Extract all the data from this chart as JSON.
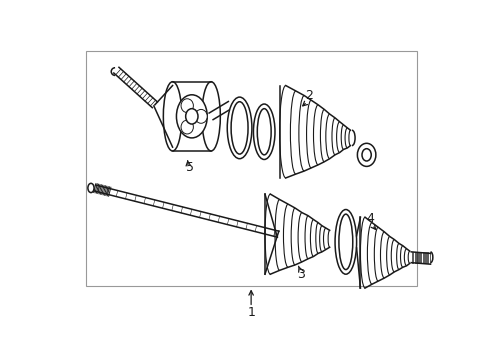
{
  "bg_color": "#ffffff",
  "border_color": "#aaaaaa",
  "line_color": "#1a1a1a",
  "label_color": "#000000",
  "figsize": [
    4.9,
    3.6
  ],
  "dpi": 100
}
